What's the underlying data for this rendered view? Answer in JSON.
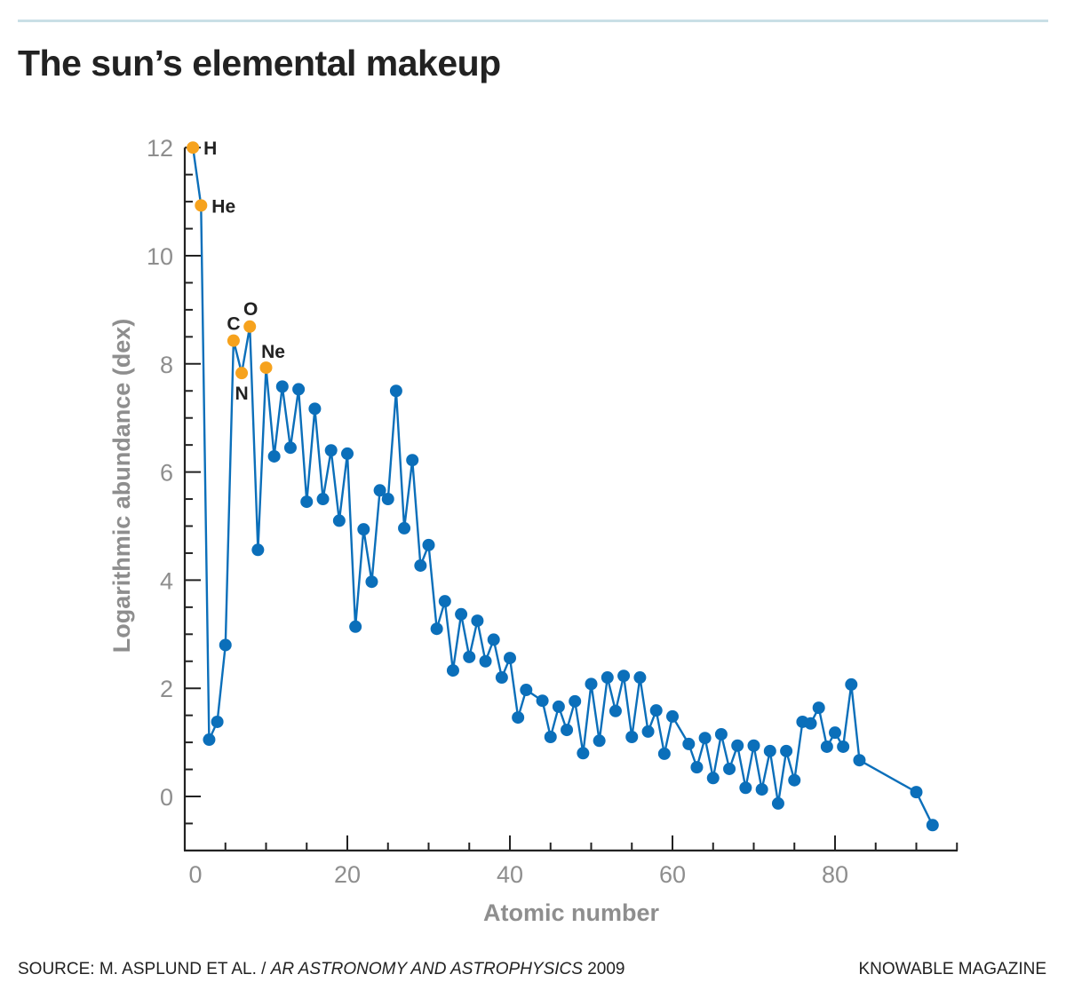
{
  "header": {
    "title": "The sun’s elemental makeup"
  },
  "footer": {
    "source_prefix": "SOURCE: M. ASPLUND ET AL. / ",
    "source_journal": "AR ASTRONOMY AND ASTROPHYSICS",
    "source_year": " 2009",
    "brand": "KNOWABLE MAGAZINE"
  },
  "chart_data": {
    "type": "line",
    "title": "The sun’s elemental makeup",
    "xlabel": "Atomic number",
    "ylabel": "Logarithmic abundance (dex)",
    "xlim": [
      0,
      95
    ],
    "ylim": [
      -1,
      12
    ],
    "xticks": [
      0,
      20,
      40,
      60,
      80
    ],
    "yticks": [
      0,
      2,
      4,
      6,
      8,
      10,
      12
    ],
    "grid": false,
    "colors": {
      "line": "#0b6fba",
      "highlight": "#f6a21d",
      "axis": "#222222",
      "tick_label": "#8e8e8e"
    },
    "x": [
      1,
      2,
      3,
      4,
      5,
      6,
      7,
      8,
      9,
      10,
      11,
      12,
      13,
      14,
      15,
      16,
      17,
      18,
      19,
      20,
      21,
      22,
      23,
      24,
      25,
      26,
      27,
      28,
      29,
      30,
      31,
      32,
      33,
      34,
      35,
      36,
      37,
      38,
      39,
      40,
      41,
      42,
      44,
      45,
      46,
      47,
      48,
      49,
      50,
      51,
      52,
      53,
      54,
      55,
      56,
      57,
      58,
      59,
      60,
      62,
      63,
      64,
      65,
      66,
      67,
      68,
      69,
      70,
      71,
      72,
      73,
      74,
      75,
      76,
      77,
      78,
      79,
      80,
      81,
      82,
      83,
      90,
      92
    ],
    "y": [
      12.0,
      10.93,
      1.05,
      1.38,
      2.8,
      8.43,
      7.83,
      8.69,
      4.56,
      7.93,
      6.29,
      7.58,
      6.45,
      7.53,
      5.45,
      7.17,
      5.5,
      6.4,
      5.1,
      6.34,
      3.14,
      4.94,
      3.97,
      5.66,
      5.5,
      7.5,
      4.96,
      6.22,
      4.27,
      4.65,
      3.1,
      3.61,
      2.33,
      3.37,
      2.58,
      3.25,
      2.5,
      2.9,
      2.2,
      2.56,
      1.46,
      1.97,
      1.77,
      1.1,
      1.66,
      1.23,
      1.76,
      0.8,
      2.08,
      1.03,
      2.2,
      1.58,
      2.23,
      1.1,
      2.2,
      1.2,
      1.59,
      0.79,
      1.48,
      0.97,
      0.54,
      1.08,
      0.34,
      1.15,
      0.51,
      0.94,
      0.16,
      0.94,
      0.13,
      0.84,
      -0.13,
      0.84,
      0.3,
      1.38,
      1.35,
      1.64,
      0.92,
      1.18,
      0.92,
      2.07,
      0.67,
      0.08,
      -0.53
    ],
    "annotations": [
      {
        "label": "H",
        "x": 1
      },
      {
        "label": "He",
        "x": 2
      },
      {
        "label": "C",
        "x": 6
      },
      {
        "label": "N",
        "x": 7
      },
      {
        "label": "O",
        "x": 8
      },
      {
        "label": "Ne",
        "x": 10
      }
    ]
  }
}
